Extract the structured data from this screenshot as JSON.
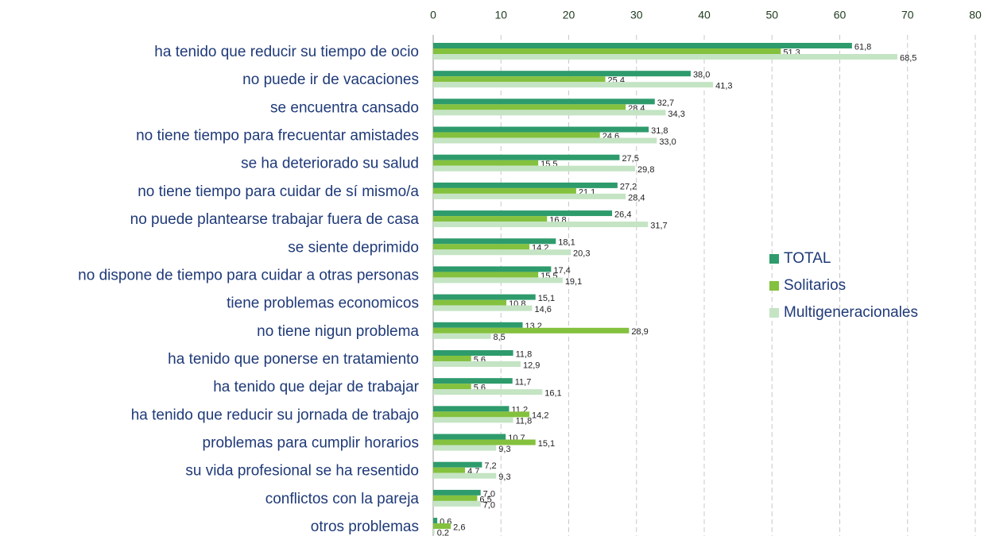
{
  "chart_data": {
    "type": "bar",
    "orientation": "horizontal",
    "categories": [
      "ha tenido que reducir su tiempo de ocio",
      "no puede ir de vacaciones",
      "se encuentra cansado",
      "no tiene tiempo para frecuentar amistades",
      "se ha deteriorado su salud",
      "no tiene tiempo para cuidar de sí mismo/a",
      "no puede plantearse trabajar fuera de casa",
      "se siente deprimido",
      "no dispone de tiempo para cuidar a otras personas",
      "tiene problemas economicos",
      "no tiene nigun problema",
      "ha tenido que ponerse en tratamiento",
      "ha tenido que dejar de trabajar",
      "ha tenido que reducir su jornada de trabajo",
      "problemas para cumplir horarios",
      "su vida profesional se ha resentido",
      "conflictos con la pareja",
      "otros problemas"
    ],
    "series": [
      {
        "name": "TOTAL",
        "color": "#2e9b6c",
        "values": [
          61.8,
          38.0,
          32.7,
          31.8,
          27.5,
          27.2,
          26.4,
          18.1,
          17.4,
          15.1,
          13.2,
          11.8,
          11.7,
          11.2,
          10.7,
          7.2,
          7.0,
          0.6
        ],
        "value_labels": [
          "61,8",
          "38,0",
          "32,7",
          "31,8",
          "27,5",
          "27,2",
          "26,4",
          "18,1",
          "17,4",
          "15,1",
          "13,2",
          "11,8",
          "11,7",
          "11,2",
          "10,7",
          "7,2",
          "7,0",
          "0,6"
        ]
      },
      {
        "name": "Solitarios",
        "color": "#84c13e",
        "values": [
          51.3,
          25.4,
          28.4,
          24.6,
          15.5,
          21.1,
          16.8,
          14.2,
          15.5,
          10.8,
          28.9,
          5.6,
          5.6,
          14.2,
          15.1,
          4.7,
          6.5,
          2.6
        ],
        "value_labels": [
          "51,3",
          "25,4",
          "28,4",
          "24,6",
          "15,5",
          "21,1",
          "16,8",
          "14,2",
          "15,5",
          "10,8",
          "28,9",
          "5,6",
          "5,6",
          "14,2",
          "15,1",
          "4,7",
          "6,5",
          "2,6"
        ]
      },
      {
        "name": "Multigeneracionales",
        "color": "#c4e4c4",
        "values": [
          68.5,
          41.3,
          34.3,
          33.0,
          29.8,
          28.4,
          31.7,
          20.3,
          19.1,
          14.6,
          8.5,
          12.9,
          16.1,
          11.8,
          9.3,
          9.3,
          7.0,
          0.2
        ],
        "value_labels": [
          "68,5",
          "41,3",
          "34,3",
          "33,0",
          "29,8",
          "28,4",
          "31,7",
          "20,3",
          "19,1",
          "14,6",
          "8,5",
          "12,9",
          "16,1",
          "11,8",
          "9,3",
          "9,3",
          "7,0",
          "0,2"
        ]
      }
    ],
    "xlim": [
      0,
      80
    ],
    "xticks": [
      0,
      10,
      20,
      30,
      40,
      50,
      60,
      70,
      80
    ],
    "grid": true,
    "legend": "right"
  }
}
